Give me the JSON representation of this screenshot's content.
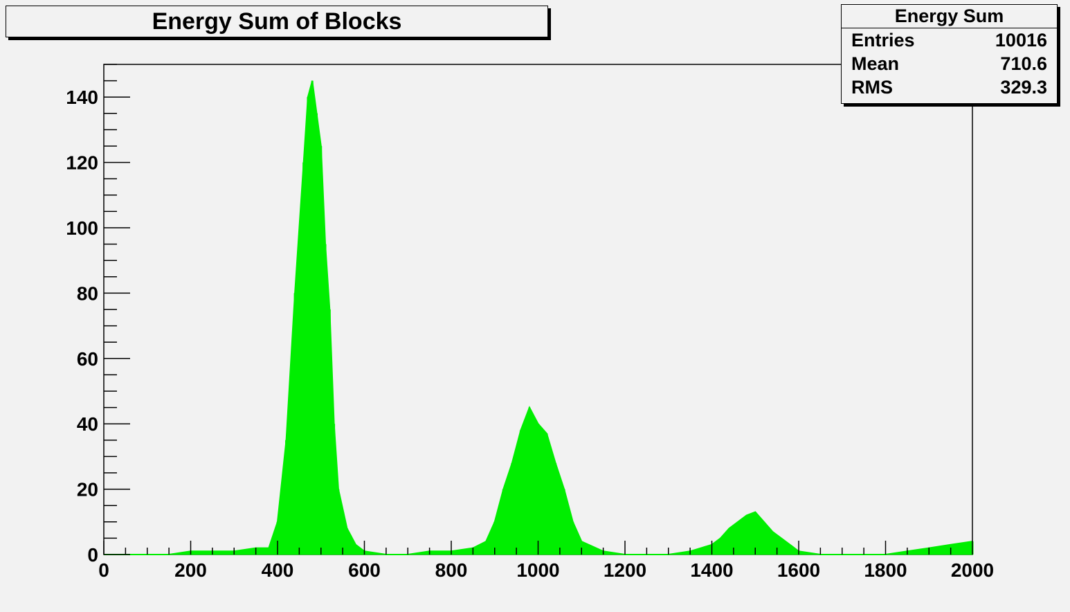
{
  "title": "Energy Sum of Blocks",
  "stats": {
    "title": "Energy Sum",
    "rows": [
      {
        "label": "Entries",
        "value": "10016"
      },
      {
        "label": "Mean",
        "value": "710.6"
      },
      {
        "label": "RMS",
        "value": "329.3"
      }
    ]
  },
  "colors": {
    "histogram": "#00ee00",
    "background": "#f2f2f2",
    "axis": "#000000"
  },
  "chart_data": {
    "type": "area",
    "title": "Energy Sum of Blocks",
    "xlabel": "",
    "ylabel": "",
    "xlim": [
      0,
      2000
    ],
    "ylim": [
      0,
      150
    ],
    "x_ticks": [
      0,
      200,
      400,
      600,
      800,
      1000,
      1200,
      1400,
      1600,
      1800,
      2000
    ],
    "y_ticks": [
      0,
      20,
      40,
      60,
      80,
      100,
      120,
      140
    ],
    "grid": false,
    "legend": "none",
    "series": [
      {
        "x": [
          0,
          50,
          100,
          150,
          200,
          250,
          300,
          350,
          380,
          400,
          420,
          440,
          460,
          470,
          480,
          490,
          500,
          510,
          520,
          530,
          540,
          560,
          580,
          600,
          650,
          700,
          750,
          800,
          850,
          880,
          900,
          920,
          940,
          960,
          980,
          1000,
          1020,
          1040,
          1060,
          1080,
          1100,
          1150,
          1200,
          1300,
          1350,
          1400,
          1420,
          1440,
          1460,
          1480,
          1500,
          1520,
          1540,
          1560,
          1580,
          1600,
          1650,
          1700,
          1800,
          1850,
          1900,
          1950,
          2000
        ],
        "y": [
          0,
          0,
          0,
          0,
          1,
          1,
          1,
          2,
          2,
          10,
          35,
          80,
          120,
          140,
          145,
          135,
          125,
          95,
          75,
          40,
          20,
          8,
          3,
          1,
          0,
          0,
          1,
          1,
          2,
          4,
          10,
          20,
          28,
          38,
          45,
          40,
          37,
          28,
          20,
          10,
          4,
          1,
          0,
          0,
          1,
          3,
          5,
          8,
          10,
          12,
          13,
          10,
          7,
          5,
          3,
          1,
          0,
          0,
          0,
          1,
          2,
          3,
          4
        ]
      }
    ]
  }
}
